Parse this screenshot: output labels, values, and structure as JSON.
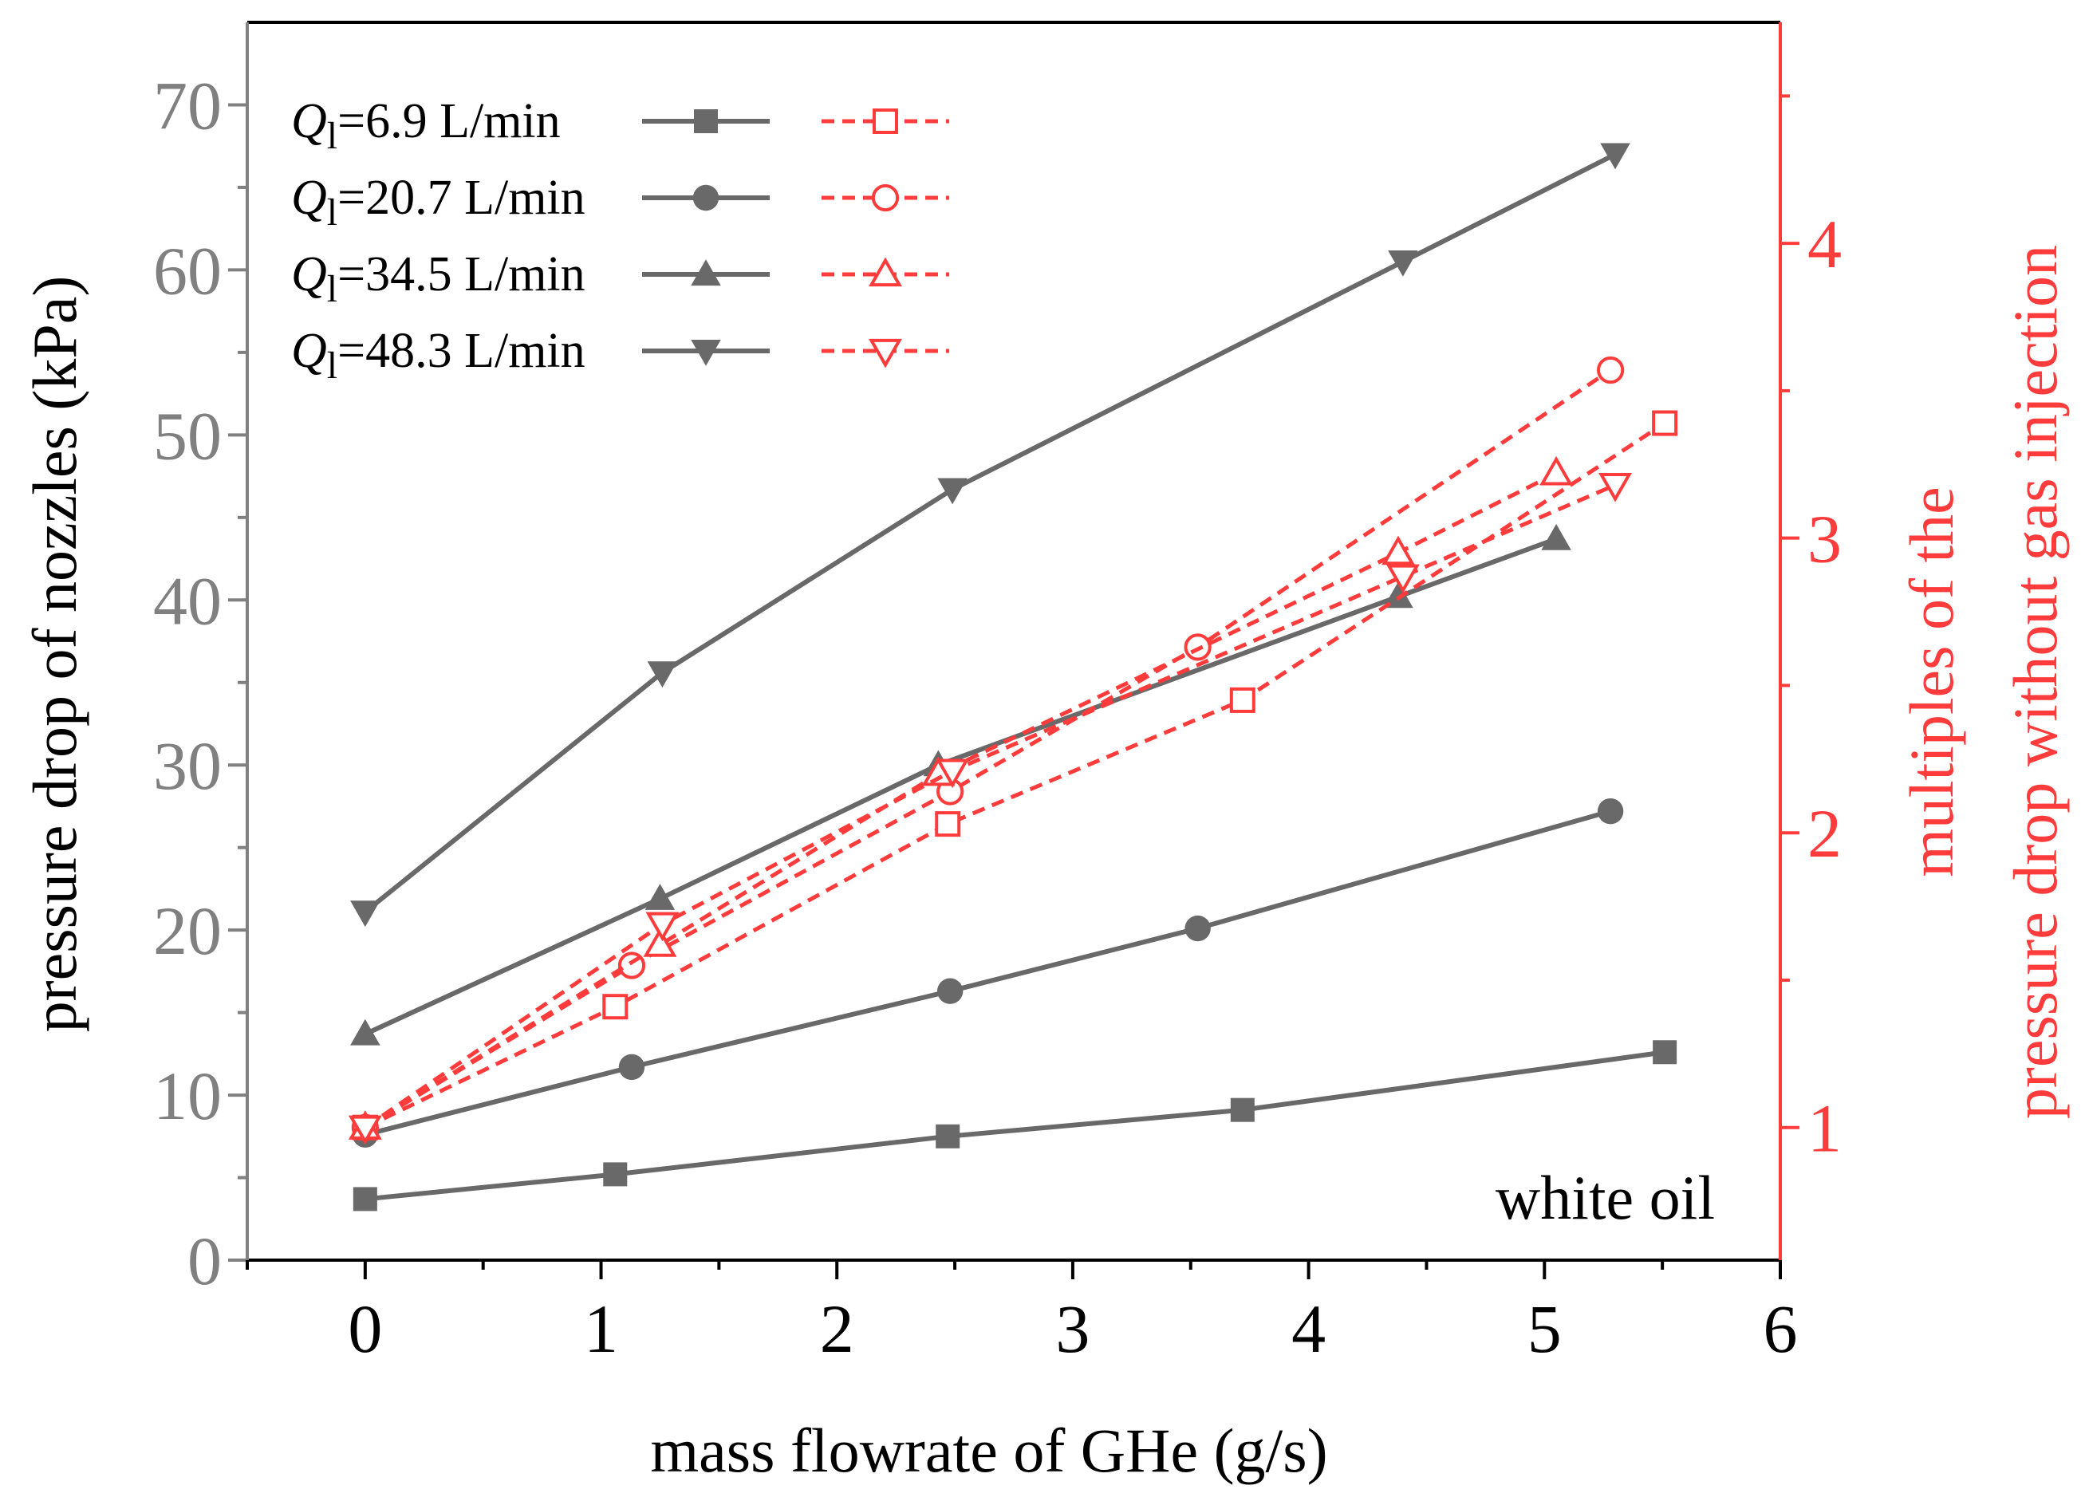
{
  "chart_data": {
    "type": "line",
    "xlabel": "mass flowrate of GHe (g/s)",
    "ylabel_left": "pressure drop of nozzles (kPa)",
    "ylabel_right_line1": "multiples of the",
    "ylabel_right_line2": "pressure drop without gas injection",
    "annotation": "white oil",
    "xlim": [
      -0.5,
      6
    ],
    "ylim_left": [
      0,
      75
    ],
    "ylim_right": [
      0.55,
      4.75
    ],
    "xticks": [
      0,
      1,
      2,
      3,
      4,
      5,
      6
    ],
    "yticks_left": [
      0,
      10,
      20,
      30,
      40,
      50,
      60,
      70
    ],
    "yticks_right": [
      1,
      2,
      3,
      4
    ],
    "colors": {
      "left_series": "#696969",
      "right_series": "#ff3b3b",
      "left_axis": "#808080",
      "right_axis": "#ff3b3b"
    },
    "legend": {
      "placement": "top-left",
      "entries": [
        {
          "prefix": "Q",
          "subscript": "l",
          "text": "=6.9 L/min",
          "marker": "square"
        },
        {
          "prefix": "Q",
          "subscript": "l",
          "text": "=20.7 L/min",
          "marker": "circle"
        },
        {
          "prefix": "Q",
          "subscript": "l",
          "text": "=34.5 L/min",
          "marker": "triangle-up"
        },
        {
          "prefix": "Q",
          "subscript": "l",
          "text": "=48.3 L/min",
          "marker": "triangle-down"
        }
      ]
    },
    "series_pressure_drop": [
      {
        "marker": "square",
        "x": [
          0,
          1.06,
          2.47,
          3.72,
          5.51
        ],
        "y": [
          3.7,
          5.2,
          7.5,
          9.1,
          12.6
        ]
      },
      {
        "marker": "circle",
        "x": [
          0,
          1.13,
          2.48,
          3.53,
          5.28
        ],
        "y": [
          7.6,
          11.7,
          16.3,
          20.1,
          27.2
        ]
      },
      {
        "marker": "triangle-up",
        "x": [
          0,
          1.25,
          2.43,
          4.38,
          5.05
        ],
        "y": [
          13.7,
          21.9,
          30.0,
          40.2,
          43.7
        ]
      },
      {
        "marker": "triangle-down",
        "x": [
          0,
          1.26,
          2.49,
          4.4,
          5.3
        ],
        "y": [
          21.1,
          35.6,
          46.7,
          60.5,
          67.0
        ]
      }
    ],
    "series_multiples": [
      {
        "marker": "square",
        "x": [
          0,
          1.06,
          2.47,
          3.72,
          5.51
        ],
        "y": [
          1.0,
          1.41,
          2.03,
          2.45,
          3.39
        ]
      },
      {
        "marker": "circle",
        "x": [
          0,
          1.13,
          2.48,
          3.53,
          5.28
        ],
        "y": [
          1.0,
          1.55,
          2.14,
          2.63,
          3.57
        ]
      },
      {
        "marker": "triangle-up",
        "x": [
          0,
          1.25,
          2.43,
          4.38,
          5.05
        ],
        "y": [
          1.0,
          1.62,
          2.2,
          2.95,
          3.22
        ]
      },
      {
        "marker": "triangle-down",
        "x": [
          0,
          1.26,
          2.49,
          4.4,
          5.3
        ],
        "y": [
          1.0,
          1.69,
          2.21,
          2.87,
          3.18
        ]
      }
    ]
  }
}
